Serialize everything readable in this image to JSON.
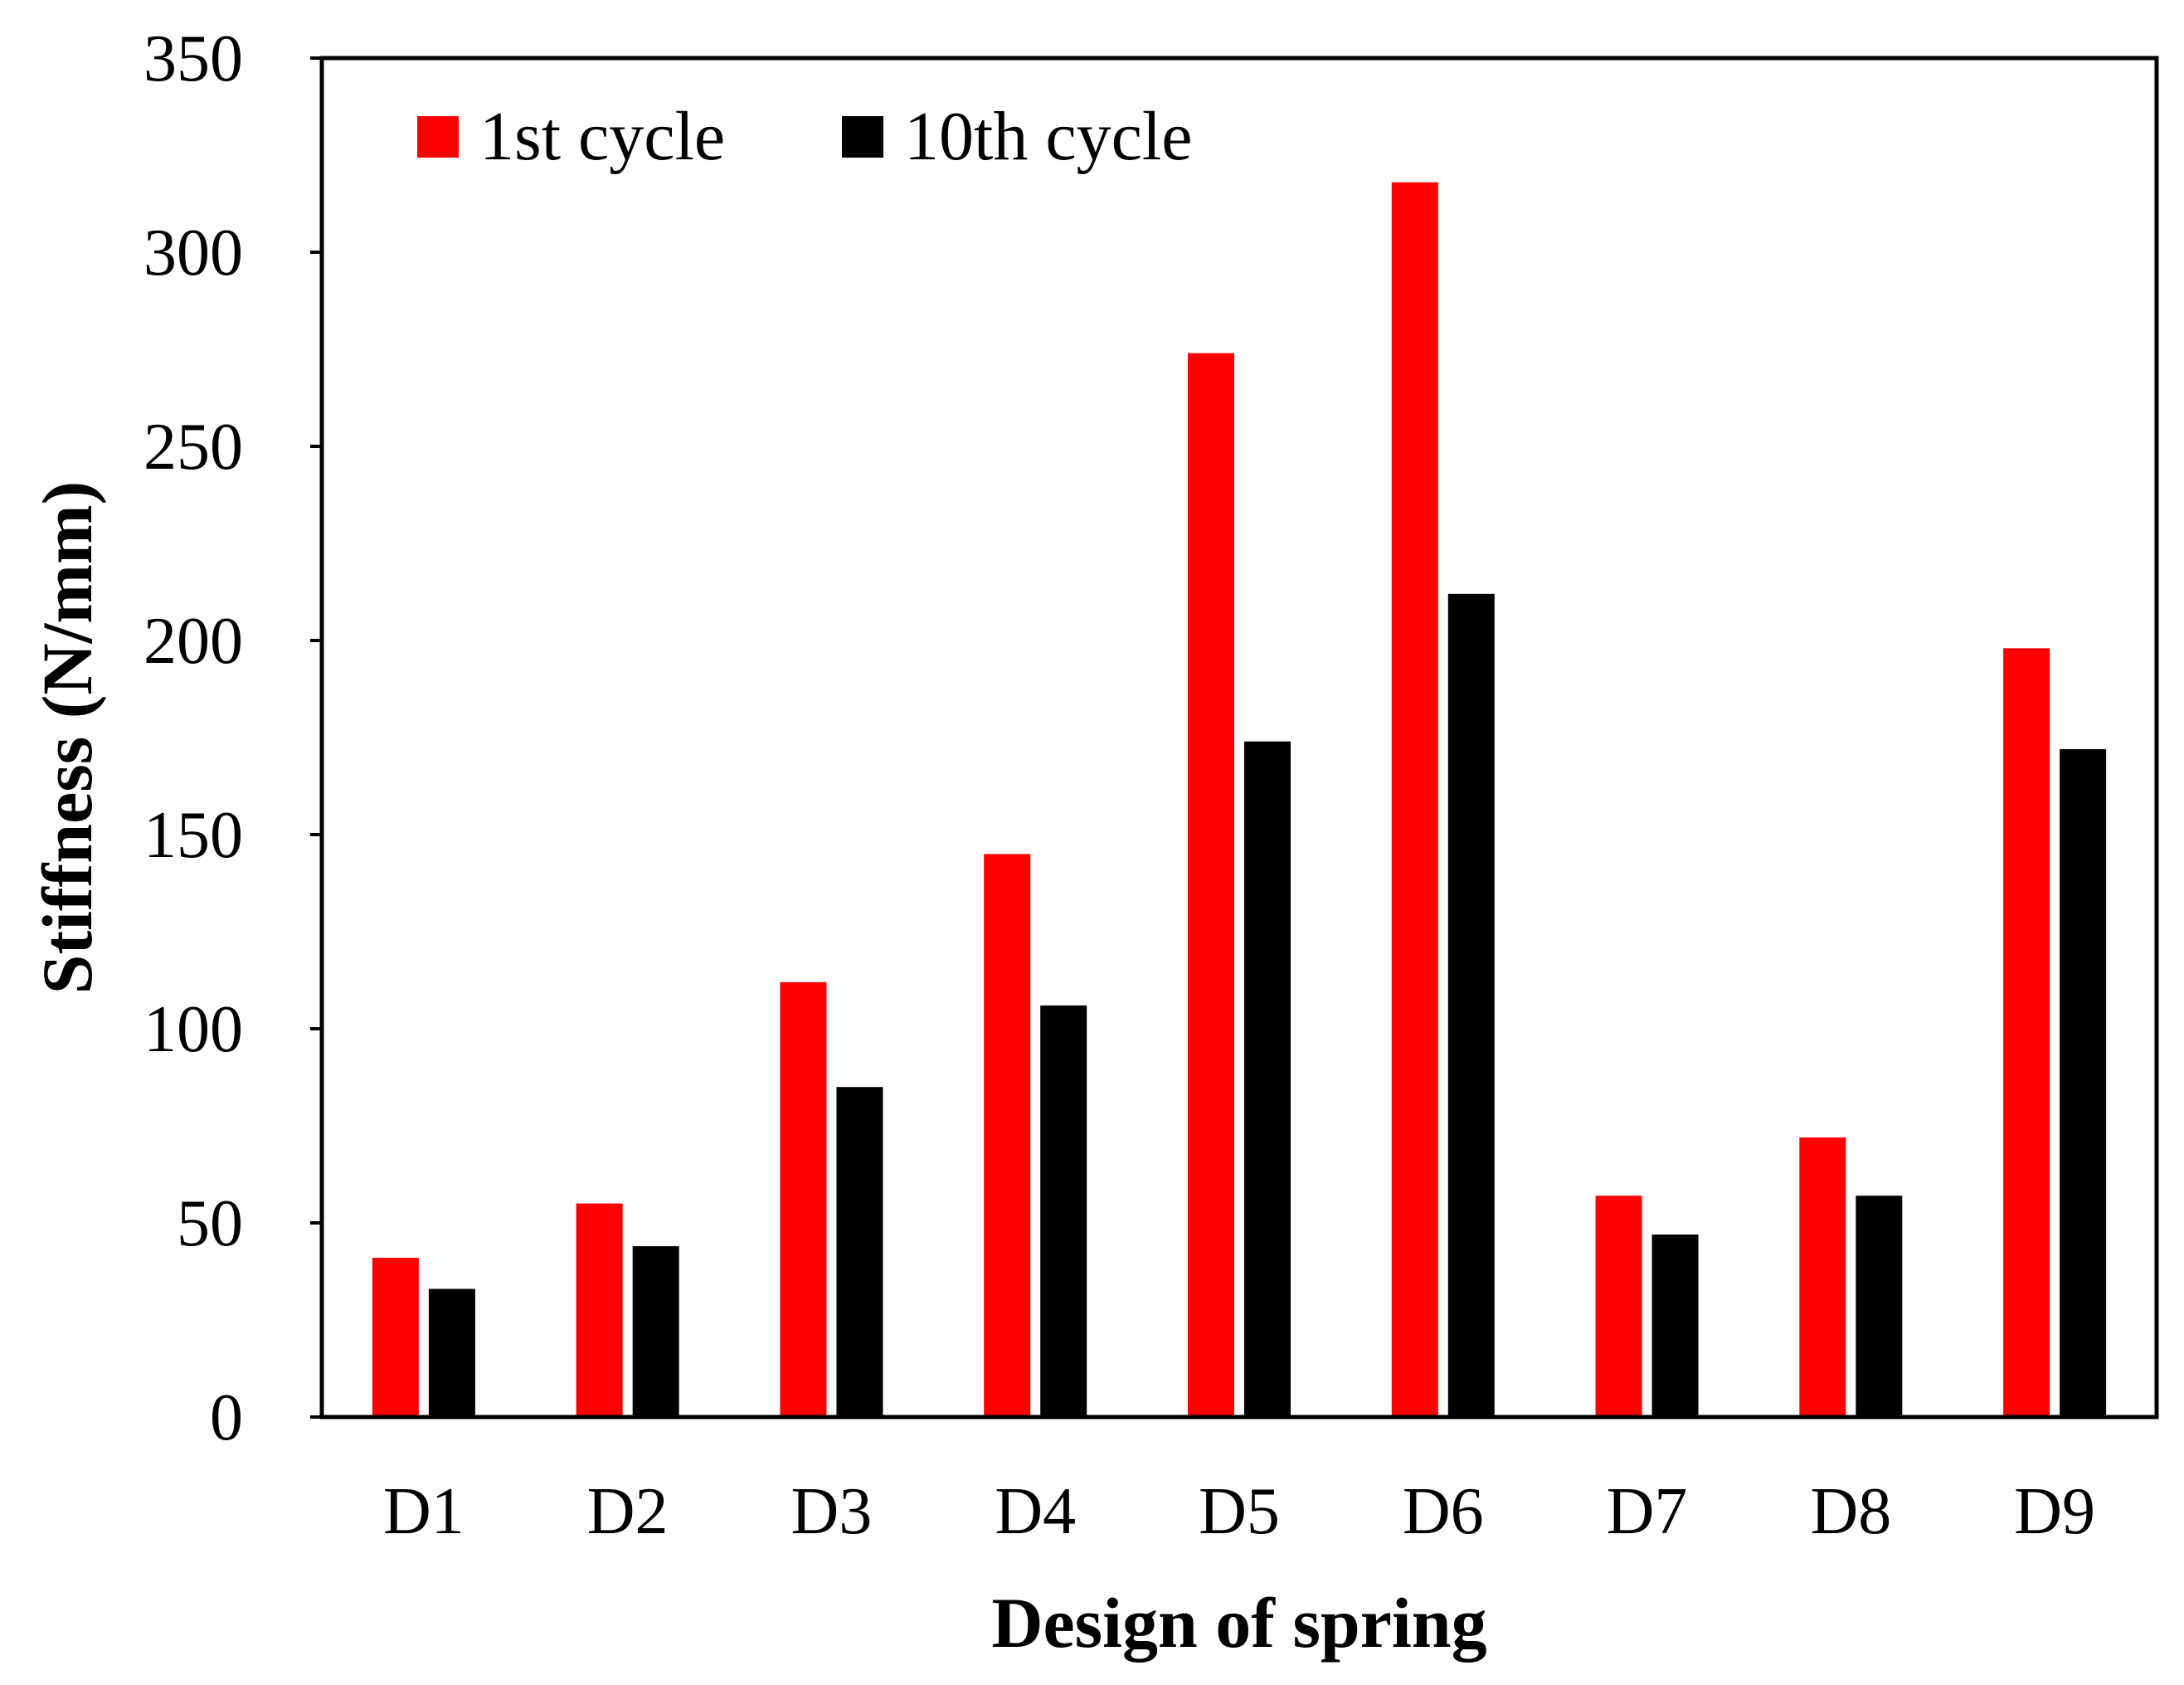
{
  "chart_data": {
    "type": "bar",
    "title": "",
    "xlabel": "Design of spring",
    "ylabel": "Stiffness (N/mm)",
    "categories": [
      "D1",
      "D2",
      "D3",
      "D4",
      "D5",
      "D6",
      "D7",
      "D8",
      "D9"
    ],
    "series": [
      {
        "name": "1st cycle",
        "color": "#ff0000",
        "values": [
          41,
          55,
          112,
          145,
          274,
          318,
          57,
          72,
          198
        ]
      },
      {
        "name": "10th cycle",
        "color": "#000000",
        "values": [
          33,
          44,
          85,
          106,
          174,
          212,
          47,
          57,
          172
        ]
      }
    ],
    "ylim": [
      0,
      350
    ],
    "yticks": [
      0,
      50,
      100,
      150,
      200,
      250,
      300,
      350
    ],
    "grid": false,
    "legend_position": "top-left"
  }
}
